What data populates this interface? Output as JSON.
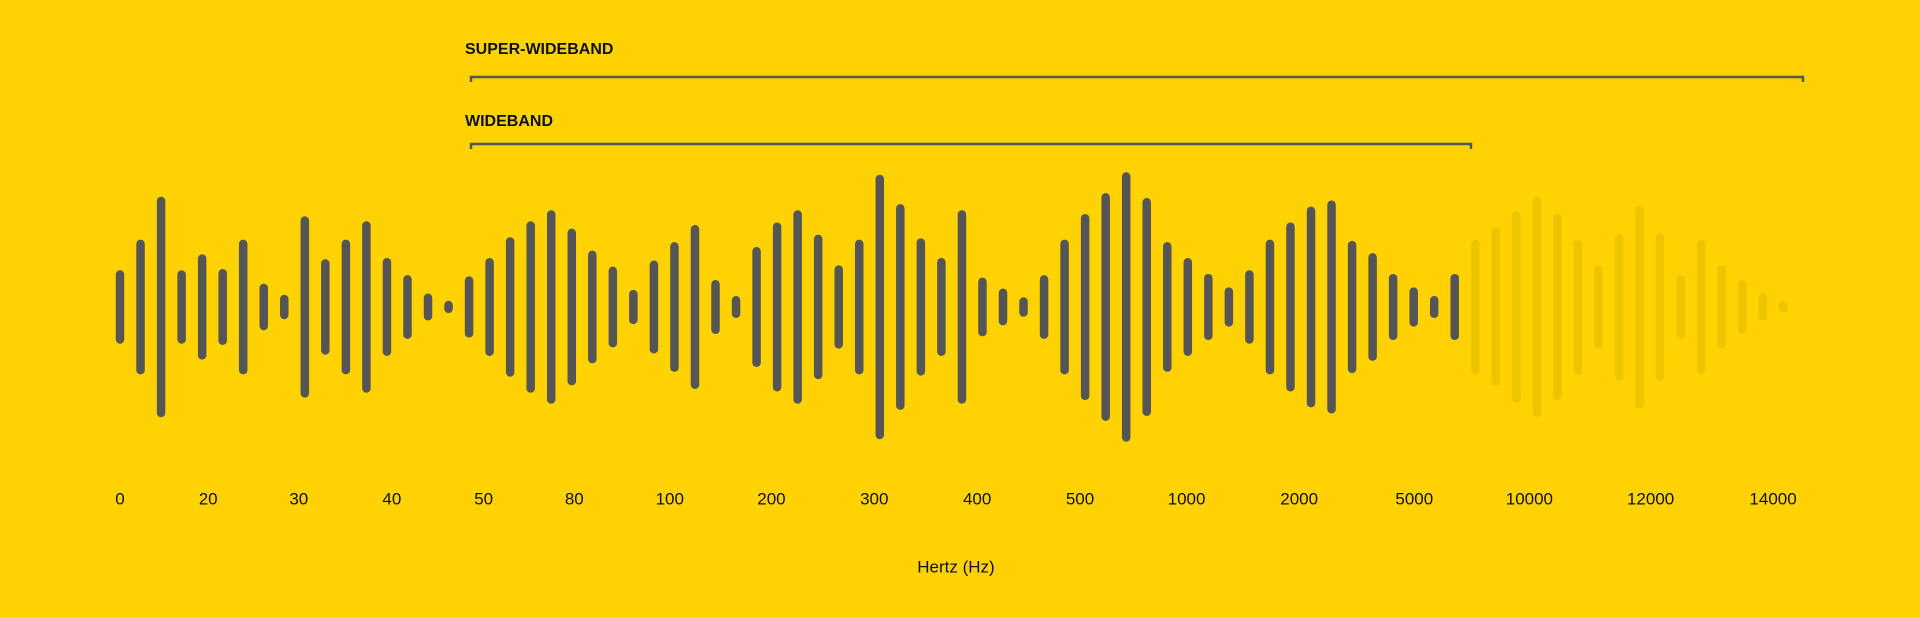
{
  "bands": [
    {
      "label": "SUPER-WIDEBAND"
    },
    {
      "label": "WIDEBAND"
    }
  ],
  "frequency_labels": [
    0,
    20,
    30,
    40,
    50,
    80,
    100,
    200,
    300,
    400,
    500,
    1000,
    2000,
    5000,
    10000,
    12000,
    14000
  ],
  "axis_label": "Hertz (Hz)"
}
